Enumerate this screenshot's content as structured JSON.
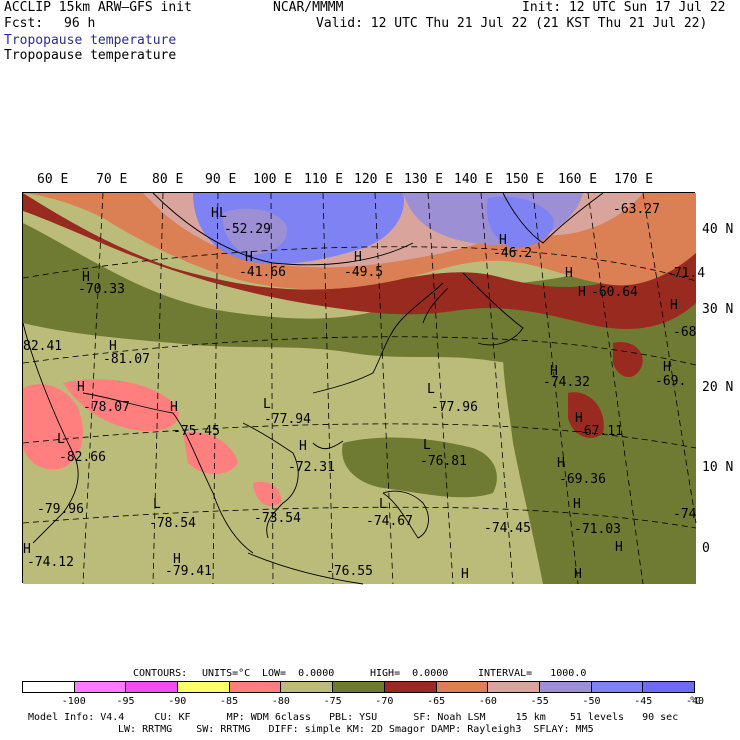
{
  "header": {
    "model": "ACCLIP 15km ARW–GFS init",
    "center": "NCAR/MMMM",
    "init": "Init: 12 UTC Sun 17 Jul 22",
    "fcst_label": "Fcst:",
    "fcst_value": "96 h",
    "valid": "Valid: 12 UTC Thu 21 Jul 22 (21 KST Thu 21 Jul 22)",
    "field_title_1": "Tropopause temperature",
    "field_title_2": "Tropopause temperature"
  },
  "lon_labels": [
    "60 E",
    "70 E",
    "80 E",
    "90 E",
    "100 E",
    "110 E",
    "120 E",
    "130 E",
    "140 E",
    "150 E",
    "160 E",
    "170 E"
  ],
  "lat_labels": [
    "40 N",
    "30 N",
    "20 N",
    "10 N",
    "0"
  ],
  "map_labels": [
    {
      "t": "H"
    },
    {
      "t": "-70.33"
    },
    {
      "t": "H"
    },
    {
      "t": "L"
    },
    {
      "t": "-52.29"
    },
    {
      "t": "H"
    },
    {
      "t": "-41.66"
    },
    {
      "t": "H"
    },
    {
      "t": "-49.5"
    },
    {
      "t": "H"
    },
    {
      "t": "-46.2"
    },
    {
      "t": "-63.27"
    },
    {
      "t": "H"
    },
    {
      "t": "-71.4"
    },
    {
      "t": "H"
    },
    {
      "t": "-60.64"
    },
    {
      "t": "H"
    },
    {
      "t": "-68"
    },
    {
      "t": "82.41"
    },
    {
      "t": "H"
    },
    {
      "t": "-81.07"
    },
    {
      "t": "H"
    },
    {
      "t": "-78.07"
    },
    {
      "t": "H"
    },
    {
      "t": "-75.45"
    },
    {
      "t": "L"
    },
    {
      "t": "-77.94"
    },
    {
      "t": "L"
    },
    {
      "t": "-77.96"
    },
    {
      "t": "H"
    },
    {
      "t": "-74.32"
    },
    {
      "t": "H"
    },
    {
      "t": "-69."
    },
    {
      "t": "H"
    },
    {
      "t": "-67.11"
    },
    {
      "t": "L"
    },
    {
      "t": "-82.66"
    },
    {
      "t": "H"
    },
    {
      "t": "-72.31"
    },
    {
      "t": "L"
    },
    {
      "t": "-76.81"
    },
    {
      "t": "H"
    },
    {
      "t": "-69.36"
    },
    {
      "t": "-79.96"
    },
    {
      "t": "L"
    },
    {
      "t": "-78.54"
    },
    {
      "t": "-73.54"
    },
    {
      "t": "L"
    },
    {
      "t": "-74.67"
    },
    {
      "t": "-74.45"
    },
    {
      "t": "H"
    },
    {
      "t": "-71.03"
    },
    {
      "t": "-74"
    },
    {
      "t": "H"
    },
    {
      "t": "-74.12"
    },
    {
      "t": "H"
    },
    {
      "t": "-79.41"
    },
    {
      "t": "-76.55"
    },
    {
      "t": "H"
    },
    {
      "t": "H"
    },
    {
      "t": "H"
    }
  ],
  "contours_line": {
    "label": "CONTOURS:",
    "units": "UNITS=°C",
    "low": "LOW=  0.0000",
    "high": "HIGH=  0.0000",
    "interval": "INTERVAL=   1000.0"
  },
  "colorbar": {
    "colors": [
      "#ffffff",
      "#ff7aff",
      "#f04ef0",
      "#ffff6e",
      "#ff7f7f",
      "#bcbc7a",
      "#6f7b33",
      "#992a1f",
      "#db7f54",
      "#d9a49c",
      "#9c8fd4",
      "#7e82f2",
      "#6d6cf2"
    ],
    "ticks": [
      "-100",
      "-95",
      "-90",
      "-85",
      "-80",
      "-75",
      "-70",
      "-65",
      "-60",
      "-55",
      "-50",
      "-45",
      "-40"
    ],
    "unit": "°C"
  },
  "footer": {
    "line1": "Model Info: V4.4     CU: KF      MP: WDM 6class   PBL: YSU      SF: Noah LSM     15 km    51 levels   90 sec",
    "line2": "LW: RRTMG    SW: RRTMG   DIFF: simple KM: 2D Smagor DAMP: Rayleigh3  SFLAY: MM5"
  }
}
